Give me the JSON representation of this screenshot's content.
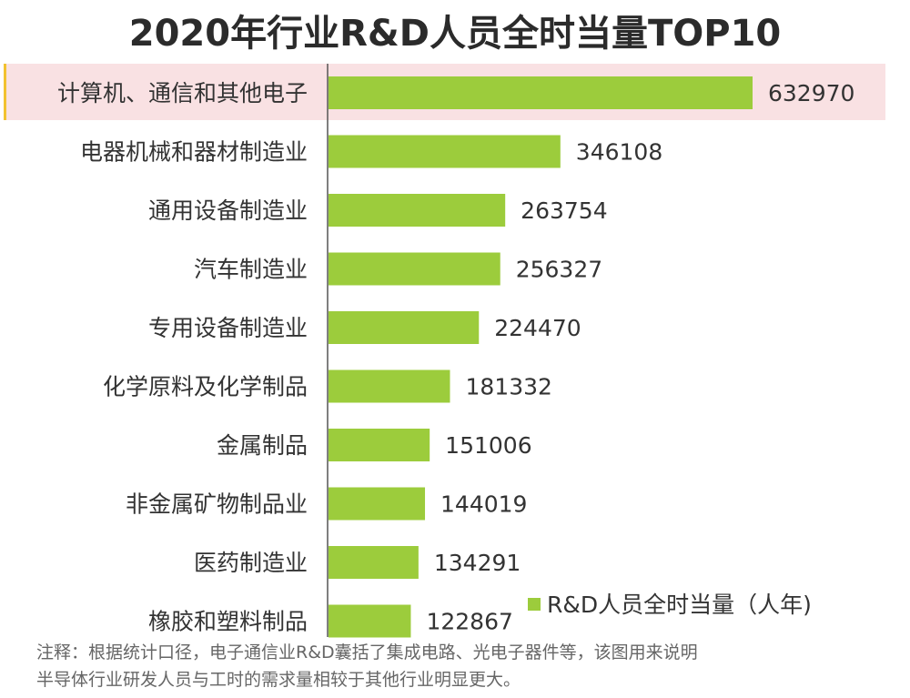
{
  "chart_data": {
    "type": "bar",
    "orientation": "horizontal",
    "title": "2020年行业R&D人员全时当量TOP10",
    "categories": [
      "计算机、通信和其他电子",
      "电器机械和器材制造业",
      "通用设备制造业",
      "汽车制造业",
      "专用设备制造业",
      "化学原料及化学制品",
      "金属制品",
      "非金属矿物制品业",
      "医药制造业",
      "橡胶和塑料制品"
    ],
    "series": [
      {
        "name": "R&D人员全时当量（人年)",
        "values": [
          632970,
          346108,
          263754,
          256327,
          224470,
          181332,
          151006,
          144019,
          134291,
          122867
        ]
      }
    ],
    "data_labels": [
      "632970",
      "346108",
      "263754",
      "256327",
      "224470",
      "181332",
      "151006",
      "144019",
      "134291",
      "122867"
    ],
    "highlighted_category": "计算机、通信和其他电子",
    "legend_position": "bottom-right",
    "grid": false,
    "colors": {
      "bar": "#9ccc3c",
      "highlight_band": "#f9e1e3",
      "highlight_accent": "#f2c230",
      "axis": "#555555",
      "text": "#333333"
    }
  },
  "note": {
    "line1": "注释：根据统计口径，电子通信业R&D囊括了集成电路、光电子器件等，该图用来说明",
    "line2": "半导体行业研发人员与工时的需求量相较于其他行业明显更大。"
  }
}
